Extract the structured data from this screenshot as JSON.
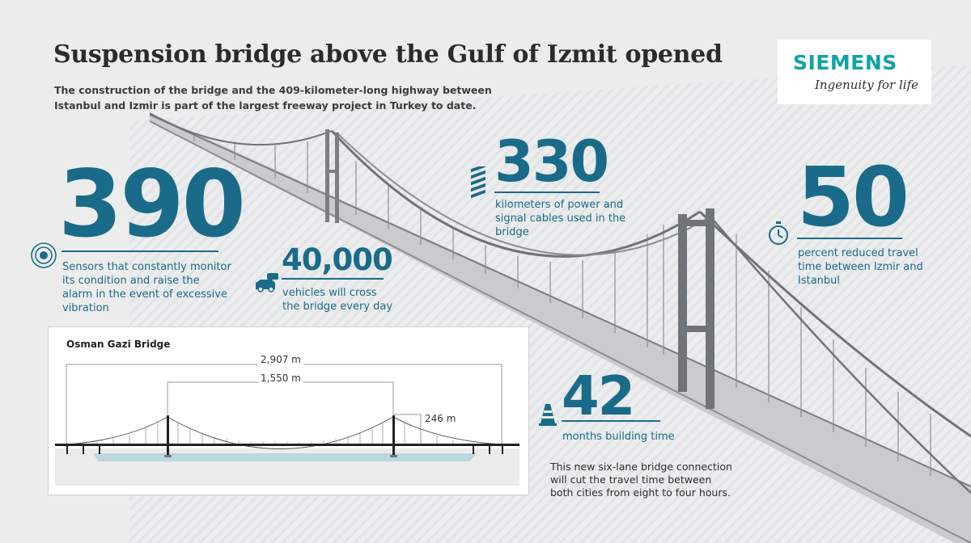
{
  "header": {
    "title": "Suspension bridge above the Gulf of Izmit opened",
    "subtitle": "The construction of the bridge and the 409-kilometer-long highway between Istanbul and Izmir is part of the largest freeway project in Turkey to date."
  },
  "logo": {
    "wordmark": "SIEMENS",
    "tagline": "Ingenuity for life"
  },
  "stats": {
    "sensors": {
      "value": "390",
      "caption": "Sensors that constantly monitor its condition and raise the alarm in the event of excessive vibration",
      "icon": "sensor-icon"
    },
    "vehicles": {
      "value": "40,000",
      "caption": "vehicles will cross the bridge every day",
      "icon": "vehicles-icon"
    },
    "cables": {
      "value": "330",
      "caption": "kilometers of power and signal cables used in the bridge",
      "icon": "cable-icon"
    },
    "travel": {
      "value": "50",
      "caption": "percent reduced travel time between Izmir and Istanbul",
      "icon": "stopwatch-icon"
    },
    "months": {
      "value": "42",
      "caption": "months building time",
      "icon": "traffic-cone-icon"
    }
  },
  "note": "This new six-lane bridge connection will cut the travel time between both cities from eight to four hours.",
  "diagram": {
    "title": "Osman Gazi Bridge",
    "total_length": "2,907 m",
    "main_span": "1,550 m",
    "tower_height": "246 m"
  },
  "colors": {
    "accent": "#1a6b8a",
    "siemens": "#11a3a8",
    "bridge_gray": "#6f7479",
    "background": "#ececec"
  }
}
